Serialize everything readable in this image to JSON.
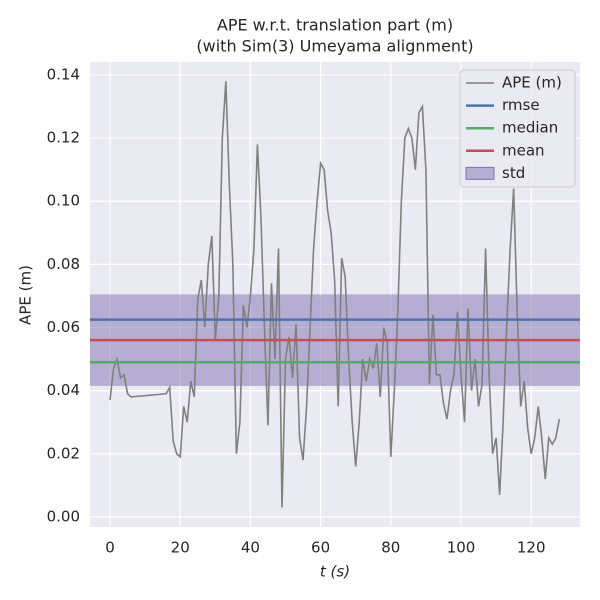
{
  "chart_data": {
    "type": "line",
    "title": "APE w.r.t. translation part (m)",
    "subtitle": "(with Sim(3) Umeyama alignment)",
    "x_label": "t (s)",
    "y_label": "APE (m)",
    "xlim": [
      -5.7,
      133.9
    ],
    "ylim": [
      -0.0032,
      0.1441
    ],
    "xticks": [
      0,
      20,
      40,
      60,
      80,
      100,
      120
    ],
    "yticks": [
      {
        "value": 0,
        "label": "0.00"
      },
      {
        "value": 0.02,
        "label": "0.02"
      },
      {
        "value": 0.04,
        "label": "0.04"
      },
      {
        "value": 0.06,
        "label": "0.06"
      },
      {
        "value": 0.08,
        "label": "0.08"
      },
      {
        "value": 0.1,
        "label": "0.10"
      },
      {
        "value": 0.12,
        "label": "0.12"
      },
      {
        "value": 0.14,
        "label": "0.14"
      }
    ],
    "grid": true,
    "legend": "upper right",
    "series": [
      {
        "name": "APE (m)",
        "color": "#808080",
        "x": [
          0,
          1,
          2,
          3,
          4,
          5,
          6,
          16,
          17,
          18,
          19,
          20,
          21,
          22,
          23,
          24,
          25,
          26,
          27,
          28,
          29,
          30,
          31,
          32,
          33,
          34,
          35,
          36,
          37,
          38,
          39,
          40,
          41,
          42,
          43,
          44,
          45,
          46,
          47,
          48,
          49,
          50,
          51,
          52,
          53,
          54,
          55,
          56,
          57,
          58,
          59,
          60,
          61,
          62,
          63,
          64,
          65,
          66,
          67,
          68,
          69,
          70,
          71,
          72,
          73,
          74,
          75,
          76,
          77,
          78,
          79,
          80,
          81,
          82,
          83,
          84,
          85,
          86,
          87,
          88,
          89,
          90,
          91,
          92,
          93,
          94,
          95,
          96,
          97,
          98,
          99,
          100,
          101,
          102,
          103,
          104,
          105,
          106,
          107,
          108,
          109,
          110,
          111,
          112,
          113,
          114,
          115,
          116,
          117,
          118,
          119,
          120,
          121,
          122,
          123,
          124,
          125,
          126,
          127,
          128
        ],
        "values": [
          0.037,
          0.047,
          0.05,
          0.044,
          0.045,
          0.039,
          0.038,
          0.039,
          0.041,
          0.024,
          0.02,
          0.019,
          0.035,
          0.03,
          0.043,
          0.038,
          0.069,
          0.075,
          0.06,
          0.08,
          0.089,
          0.056,
          0.07,
          0.12,
          0.138,
          0.105,
          0.08,
          0.02,
          0.03,
          0.067,
          0.06,
          0.07,
          0.085,
          0.118,
          0.095,
          0.06,
          0.029,
          0.074,
          0.05,
          0.085,
          0.003,
          0.05,
          0.057,
          0.044,
          0.061,
          0.025,
          0.018,
          0.035,
          0.06,
          0.085,
          0.1,
          0.112,
          0.11,
          0.097,
          0.09,
          0.075,
          0.035,
          0.082,
          0.076,
          0.05,
          0.03,
          0.016,
          0.03,
          0.05,
          0.043,
          0.05,
          0.047,
          0.055,
          0.038,
          0.06,
          0.055,
          0.019,
          0.04,
          0.065,
          0.1,
          0.12,
          0.123,
          0.12,
          0.11,
          0.128,
          0.13,
          0.11,
          0.042,
          0.064,
          0.045,
          0.045,
          0.036,
          0.031,
          0.04,
          0.045,
          0.065,
          0.045,
          0.03,
          0.066,
          0.04,
          0.05,
          0.035,
          0.042,
          0.085,
          0.045,
          0.02,
          0.025,
          0.007,
          0.03,
          0.06,
          0.085,
          0.104,
          0.065,
          0.035,
          0.043,
          0.028,
          0.02,
          0.025,
          0.035,
          0.025,
          0.012,
          0.025,
          0.023,
          0.025,
          0.031
        ]
      }
    ],
    "hlines": [
      {
        "name": "rmse",
        "value": 0.0625,
        "color": "#4c72b0"
      },
      {
        "name": "median",
        "value": 0.049,
        "color": "#55a868"
      },
      {
        "name": "mean",
        "value": 0.056,
        "color": "#c44e52"
      }
    ],
    "band": {
      "name": "std",
      "value": 0.0145,
      "color": "#8172b2"
    }
  }
}
